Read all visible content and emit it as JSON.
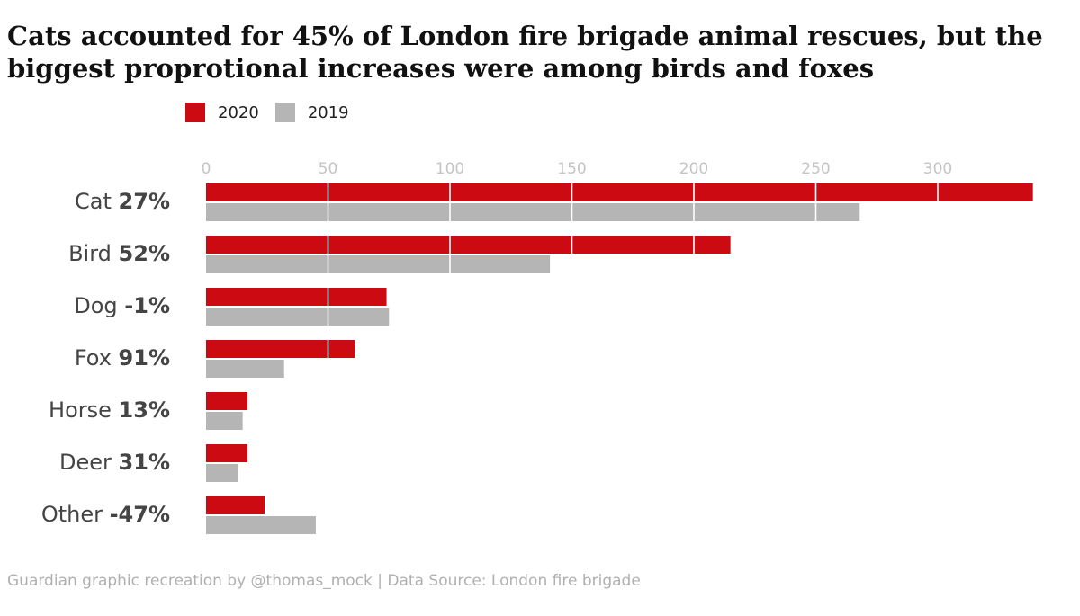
{
  "title": "Cats accounted for 45% of London fire brigade animal rescues, but the biggest proprotional increases were among birds and foxes",
  "caption": "Guardian graphic recreation by @thomas_mock | Data Source: London fire brigade",
  "colors": {
    "series_2020": "#cc0a11",
    "series_2019": "#b5b5b5",
    "tick": "#c4c4c4",
    "label": "#444444",
    "grid": "#ffffff"
  },
  "chart_data": {
    "type": "bar",
    "orientation": "horizontal",
    "title": "Cats accounted for 45% of London fire brigade animal rescues, but the biggest proprotional increases were among birds and foxes",
    "xlabel": "",
    "ylabel": "",
    "xlim": [
      0,
      340
    ],
    "x_ticks": [
      0,
      50,
      100,
      150,
      200,
      250,
      300
    ],
    "x_axis_position": "top",
    "grid": true,
    "legend_position": "top-left",
    "categories": [
      "Cat",
      "Bird",
      "Dog",
      "Fox",
      "Horse",
      "Deer",
      "Other"
    ],
    "change_labels": [
      "27%",
      "52%",
      "-1%",
      "91%",
      "13%",
      "31%",
      "-47%"
    ],
    "series": [
      {
        "name": "2020",
        "values": [
          339,
          215,
          74,
          61,
          17,
          17,
          24
        ]
      },
      {
        "name": "2019",
        "values": [
          268,
          141,
          75,
          32,
          15,
          13,
          45
        ]
      }
    ]
  }
}
